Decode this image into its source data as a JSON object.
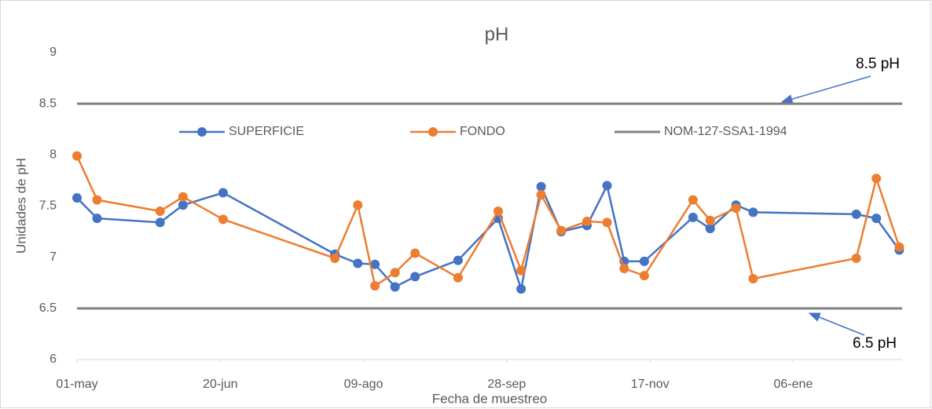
{
  "chart_data": {
    "type": "line",
    "title": "pH",
    "x_label": "Fecha de muestreo",
    "y_label": "Unidades de pH",
    "xlim": [
      0,
      288
    ],
    "xticks": [
      {
        "value": 0,
        "label": "01-may"
      },
      {
        "value": 50,
        "label": "20-jun"
      },
      {
        "value": 100,
        "label": "09-ago"
      },
      {
        "value": 150,
        "label": "28-sep"
      },
      {
        "value": 200,
        "label": "17-nov"
      },
      {
        "value": 250,
        "label": "06-ene"
      }
    ],
    "ylim": [
      6,
      9
    ],
    "yticks": [
      6,
      6.5,
      7,
      7.5,
      8,
      8.5,
      9
    ],
    "x": [
      0,
      7,
      29,
      37,
      51,
      90,
      98,
      104,
      111,
      118,
      133,
      147,
      155,
      162,
      169,
      178,
      185,
      191,
      198,
      215,
      221,
      230,
      236,
      272,
      279,
      287
    ],
    "series": [
      {
        "name": "SUPERFICIE",
        "color": "#4472c4",
        "values": [
          7.58,
          7.38,
          7.34,
          7.51,
          7.63,
          7.03,
          6.94,
          6.93,
          6.71,
          6.81,
          6.97,
          7.38,
          6.69,
          7.69,
          7.25,
          7.31,
          7.7,
          6.96,
          6.96,
          7.39,
          7.28,
          7.51,
          7.44,
          7.42,
          7.38,
          7.07
        ]
      },
      {
        "name": "FONDO",
        "color": "#ed7d31",
        "values": [
          7.99,
          7.56,
          7.45,
          7.59,
          7.37,
          6.99,
          7.51,
          6.72,
          6.85,
          7.04,
          6.8,
          7.45,
          6.87,
          7.61,
          7.26,
          7.35,
          7.34,
          6.89,
          6.82,
          7.56,
          7.36,
          7.48,
          6.79,
          6.99,
          7.77,
          7.1
        ]
      }
    ],
    "limits": {
      "name": "NOM-127-SSA1-1994",
      "color": "#808080",
      "values": [
        8.5,
        6.5
      ]
    },
    "annotations": [
      "8.5 pH",
      "6.5 pH"
    ]
  }
}
